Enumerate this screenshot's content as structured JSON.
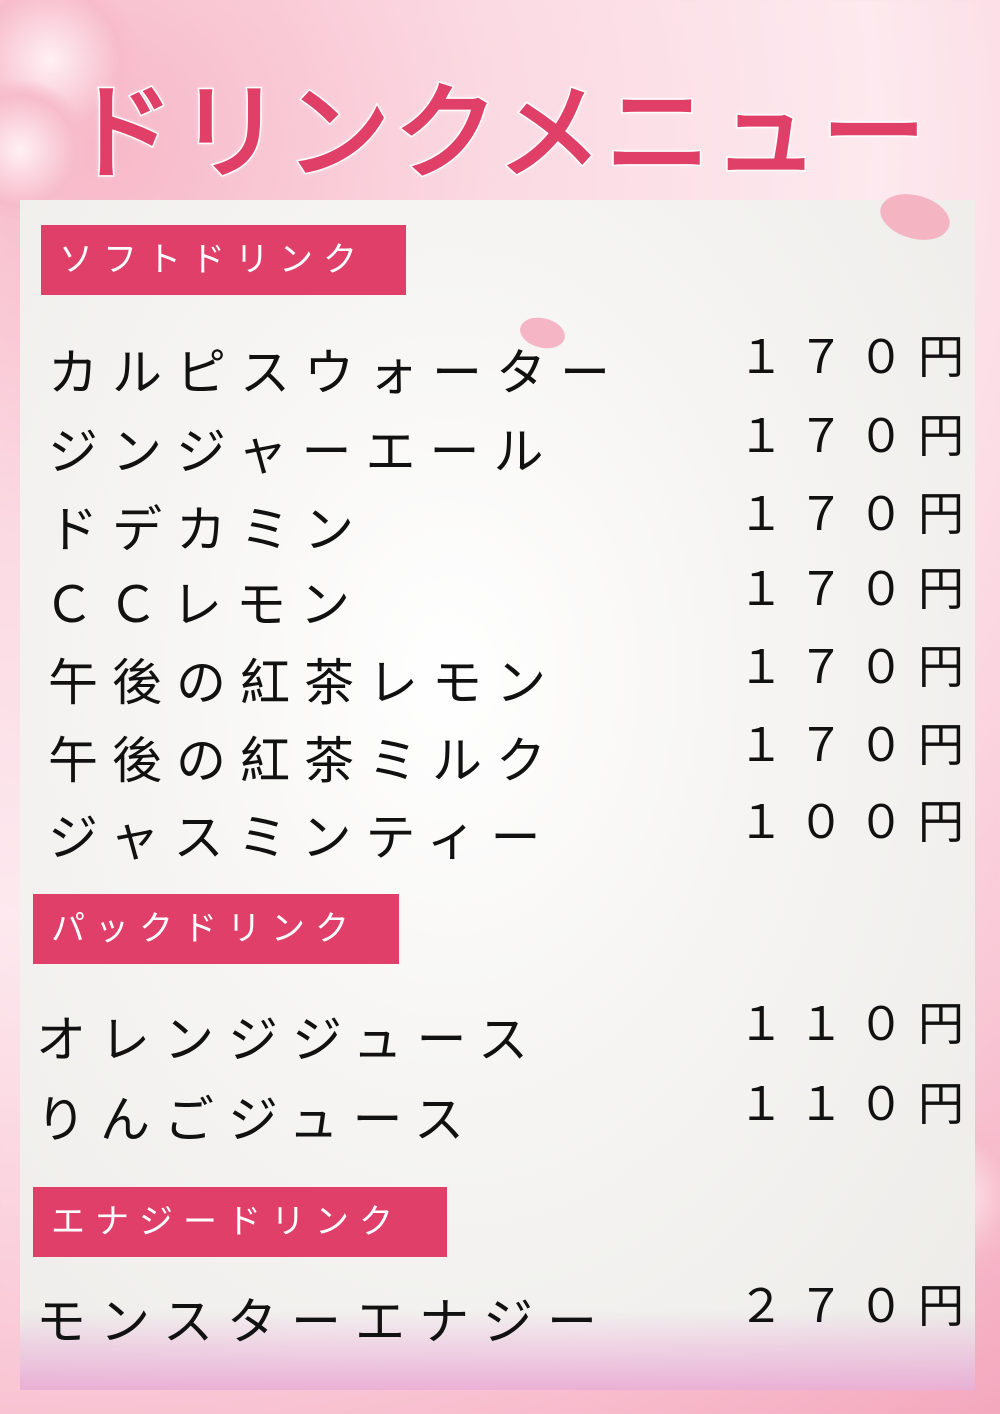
{
  "title": "ドリンクメニュー",
  "sections": [
    {
      "label": "ソフトドリンク",
      "items": [
        {
          "name": "カルピスウォーター",
          "price": "１７０円"
        },
        {
          "name": "ジンジャーエール",
          "price": "１７０円"
        },
        {
          "name": "ドデカミン",
          "price": "１７０円"
        },
        {
          "name": "ＣＣレモン",
          "price": "１７０円"
        },
        {
          "name": "午後の紅茶レモン",
          "price": "１７０円"
        },
        {
          "name": "午後の紅茶ミルク",
          "price": "１７０円"
        },
        {
          "name": "ジャスミンティー",
          "price": "１００円"
        }
      ]
    },
    {
      "label": "パックドリンク",
      "items": [
        {
          "name": "オレンジジュース",
          "price": "１１０円"
        },
        {
          "name": "りんごジュース",
          "price": "１１０円"
        }
      ]
    },
    {
      "label": "エナジードリンク",
      "items": [
        {
          "name": "モンスターエナジー",
          "price": "２７０円"
        }
      ]
    }
  ],
  "colors": {
    "accent": "#df3f68",
    "text": "#111111"
  }
}
